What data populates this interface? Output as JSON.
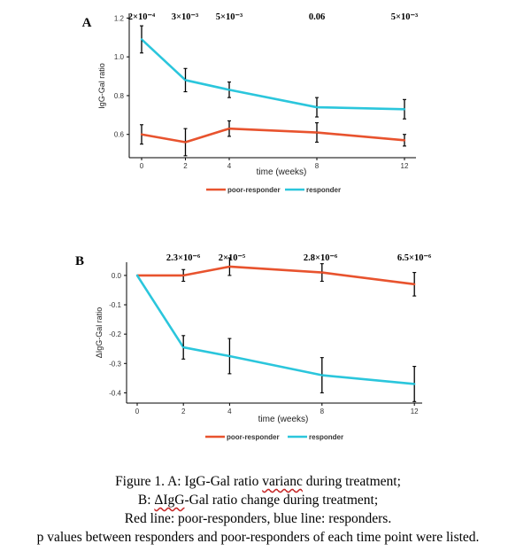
{
  "colors": {
    "poor": "#e8532e",
    "responder": "#2bc6dc",
    "axis": "#000000"
  },
  "chart_data": [
    {
      "type": "line",
      "panel_label": "A",
      "x": [
        0,
        2,
        4,
        8,
        12
      ],
      "xlabel": "time (weeks)",
      "ylabel": "IgG-Gal ratio",
      "ylim": [
        0.48,
        1.22
      ],
      "y_ticks": [
        "0.6",
        "0.8",
        "1.0",
        "1.2"
      ],
      "y_tick_values": [
        0.6,
        0.8,
        1.0,
        1.2
      ],
      "x_ticks": [
        "0",
        "2",
        "4",
        "8",
        "12"
      ],
      "grid": false,
      "legend_position": "bottom",
      "p_values": [
        "2×10⁻⁴",
        "3×10⁻³",
        "5×10⁻³",
        "0.06",
        "5×10⁻³"
      ],
      "series": [
        {
          "name": "poor-responder",
          "values": [
            0.6,
            0.56,
            0.63,
            0.61,
            0.57
          ],
          "error": [
            0.05,
            0.07,
            0.04,
            0.05,
            0.03
          ]
        },
        {
          "name": "responder",
          "values": [
            1.09,
            0.88,
            0.83,
            0.74,
            0.73
          ],
          "error": [
            0.07,
            0.06,
            0.04,
            0.05,
            0.05
          ]
        }
      ]
    },
    {
      "type": "line",
      "panel_label": "B",
      "x": [
        0,
        2,
        4,
        8,
        12
      ],
      "xlabel": "time (weeks)",
      "ylabel": "ΔIgG-Gal ratio",
      "ylim": [
        -0.435,
        0.045
      ],
      "y_ticks": [
        "0.0",
        "-0.1",
        "-0.2",
        "-0.3",
        "-0.4"
      ],
      "y_tick_values": [
        0.0,
        -0.1,
        -0.2,
        -0.3,
        -0.4
      ],
      "x_ticks": [
        "0",
        "2",
        "4",
        "8",
        "12"
      ],
      "grid": false,
      "legend_position": "bottom",
      "p_values": [
        "2.3×10⁻⁶",
        "2×10⁻⁵",
        "2.8×10⁻⁶",
        "6.5×10⁻⁶"
      ],
      "series": [
        {
          "name": "poor-responder",
          "values": [
            0.0,
            0.0,
            0.03,
            0.01,
            -0.03
          ],
          "error": [
            0.0,
            0.02,
            0.03,
            0.03,
            0.04
          ]
        },
        {
          "name": "responder",
          "values": [
            0.0,
            -0.245,
            -0.275,
            -0.34,
            -0.37
          ],
          "error": [
            0.0,
            0.04,
            0.06,
            0.06,
            0.06
          ]
        }
      ]
    }
  ],
  "caption": {
    "line1_prefix": "Figure 1. ",
    "line1_label": "A",
    "line1_mid": ": IgG-Gal ratio ",
    "line1_typo": "varianc",
    "line1_end": " during treatment;",
    "line2_prefix": "B: ",
    "line2_typo": "ΔIgG",
    "line2_end": "-Gal ratio change during treatment;",
    "line3": "Red line: poor-responders, blue line: responders.",
    "line4": "p values between responders and poor-responders of each time point were listed."
  }
}
